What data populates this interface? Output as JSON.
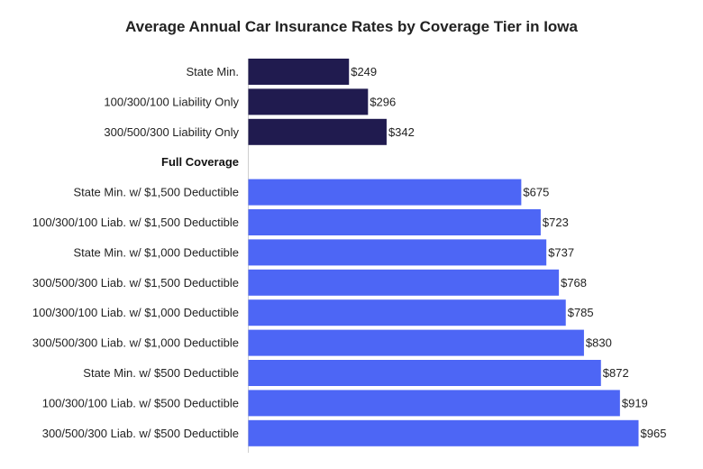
{
  "chart_data": {
    "type": "bar",
    "orientation": "horizontal",
    "title": "Average Annual Car Insurance Rates by Coverage Tier in Iowa",
    "xlabel": "",
    "ylabel": "",
    "xlim": [
      0,
      965
    ],
    "grid": false,
    "value_prefix": "$",
    "colors": {
      "liability": "#201b4f",
      "full_coverage": "#4d66f5"
    },
    "rows": [
      {
        "kind": "bar",
        "label": "State Min.",
        "value": 249,
        "series": "liability"
      },
      {
        "kind": "bar",
        "label": "100/300/100 Liability Only",
        "value": 296,
        "series": "liability"
      },
      {
        "kind": "bar",
        "label": "300/500/300 Liability Only",
        "value": 342,
        "series": "liability"
      },
      {
        "kind": "group",
        "label": "Full Coverage"
      },
      {
        "kind": "bar",
        "label": "State Min. w/ $1,500 Deductible",
        "value": 675,
        "series": "full_coverage"
      },
      {
        "kind": "bar",
        "label": "100/300/100 Liab. w/ $1,500 Deductible",
        "value": 723,
        "series": "full_coverage"
      },
      {
        "kind": "bar",
        "label": "State Min. w/ $1,000 Deductible",
        "value": 737,
        "series": "full_coverage"
      },
      {
        "kind": "bar",
        "label": "300/500/300 Liab. w/ $1,500 Deductible",
        "value": 768,
        "series": "full_coverage"
      },
      {
        "kind": "bar",
        "label": "100/300/100 Liab. w/ $1,000 Deductible",
        "value": 785,
        "series": "full_coverage"
      },
      {
        "kind": "bar",
        "label": "300/500/300 Liab. w/ $1,000 Deductible",
        "value": 830,
        "series": "full_coverage"
      },
      {
        "kind": "bar",
        "label": "State Min. w/ $500 Deductible",
        "value": 872,
        "series": "full_coverage"
      },
      {
        "kind": "bar",
        "label": "100/300/100 Liab. w/ $500 Deductible",
        "value": 919,
        "series": "full_coverage"
      },
      {
        "kind": "bar",
        "label": "300/500/300 Liab. w/ $500 Deductible",
        "value": 965,
        "series": "full_coverage"
      }
    ]
  }
}
